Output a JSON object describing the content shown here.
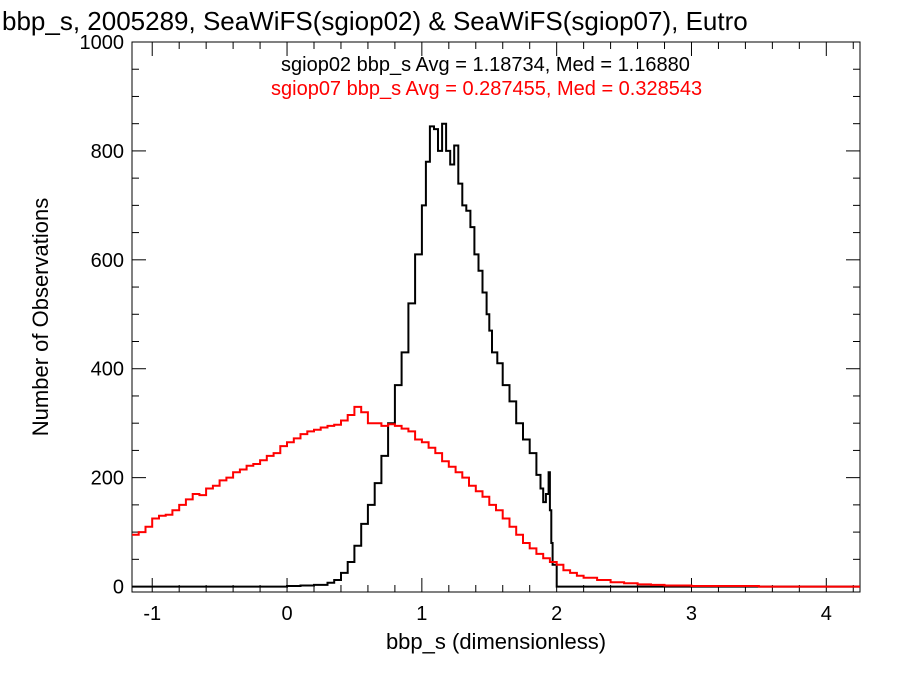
{
  "chart_data": {
    "type": "line",
    "title": "bbp_s, 2005289, SeaWiFS(sgiop02) & SeaWiFS(sgiop07), Eutro",
    "xlabel": "bbp_s (dimensionless)",
    "ylabel": "Number of Observations",
    "xlim": [
      -1.15,
      4.25
    ],
    "ylim": [
      -10,
      1000
    ],
    "x_ticks": [
      "-1",
      "0",
      "1",
      "2",
      "3",
      "4"
    ],
    "x_tick_values": [
      -1,
      0,
      1,
      2,
      3,
      4
    ],
    "y_ticks": [
      "0",
      "200",
      "400",
      "600",
      "800",
      "1000"
    ],
    "y_tick_values": [
      0,
      200,
      400,
      600,
      800,
      1000
    ],
    "step": true,
    "annotations": [
      {
        "text": "sgiop02 bbp_s Avg = 1.18734, Med = 1.16880",
        "color": "#000000"
      },
      {
        "text": "sgiop07 bbp_s Avg = 0.287455, Med = 0.328543",
        "color": "#ff0000"
      }
    ],
    "series": [
      {
        "color": "#000000",
        "points": [
          [
            -1.15,
            0
          ],
          [
            -0.2,
            0
          ],
          [
            0.0,
            1
          ],
          [
            0.1,
            2
          ],
          [
            0.2,
            3
          ],
          [
            0.3,
            7
          ],
          [
            0.35,
            12
          ],
          [
            0.4,
            25
          ],
          [
            0.45,
            45
          ],
          [
            0.5,
            75
          ],
          [
            0.55,
            115
          ],
          [
            0.6,
            150
          ],
          [
            0.65,
            190
          ],
          [
            0.7,
            240
          ],
          [
            0.75,
            300
          ],
          [
            0.8,
            370
          ],
          [
            0.85,
            430
          ],
          [
            0.9,
            520
          ],
          [
            0.95,
            610
          ],
          [
            1.0,
            700
          ],
          [
            1.03,
            780
          ],
          [
            1.06,
            845
          ],
          [
            1.09,
            840
          ],
          [
            1.12,
            800
          ],
          [
            1.15,
            850
          ],
          [
            1.18,
            800
          ],
          [
            1.21,
            775
          ],
          [
            1.24,
            810
          ],
          [
            1.27,
            740
          ],
          [
            1.3,
            700
          ],
          [
            1.33,
            690
          ],
          [
            1.36,
            660
          ],
          [
            1.39,
            610
          ],
          [
            1.42,
            580
          ],
          [
            1.45,
            540
          ],
          [
            1.48,
            500
          ],
          [
            1.5,
            470
          ],
          [
            1.52,
            430
          ],
          [
            1.56,
            410
          ],
          [
            1.6,
            370
          ],
          [
            1.65,
            340
          ],
          [
            1.7,
            300
          ],
          [
            1.75,
            270
          ],
          [
            1.8,
            245
          ],
          [
            1.85,
            205
          ],
          [
            1.88,
            180
          ],
          [
            1.9,
            155
          ],
          [
            1.92,
            170
          ],
          [
            1.94,
            210
          ],
          [
            1.95,
            140
          ],
          [
            1.96,
            80
          ],
          [
            1.97,
            40
          ],
          [
            2.0,
            0
          ],
          [
            4.25,
            0
          ]
        ]
      },
      {
        "color": "#ff0000",
        "points": [
          [
            -1.15,
            95
          ],
          [
            -1.1,
            100
          ],
          [
            -1.05,
            110
          ],
          [
            -1.0,
            125
          ],
          [
            -0.95,
            130
          ],
          [
            -0.9,
            132
          ],
          [
            -0.85,
            140
          ],
          [
            -0.8,
            150
          ],
          [
            -0.75,
            160
          ],
          [
            -0.7,
            170
          ],
          [
            -0.65,
            168
          ],
          [
            -0.6,
            180
          ],
          [
            -0.55,
            185
          ],
          [
            -0.5,
            195
          ],
          [
            -0.45,
            200
          ],
          [
            -0.4,
            210
          ],
          [
            -0.35,
            215
          ],
          [
            -0.3,
            222
          ],
          [
            -0.25,
            225
          ],
          [
            -0.2,
            232
          ],
          [
            -0.15,
            240
          ],
          [
            -0.1,
            245
          ],
          [
            -0.05,
            258
          ],
          [
            0.0,
            265
          ],
          [
            0.05,
            272
          ],
          [
            0.1,
            280
          ],
          [
            0.15,
            285
          ],
          [
            0.2,
            288
          ],
          [
            0.25,
            292
          ],
          [
            0.3,
            295
          ],
          [
            0.35,
            297
          ],
          [
            0.4,
            305
          ],
          [
            0.45,
            315
          ],
          [
            0.5,
            330
          ],
          [
            0.55,
            320
          ],
          [
            0.6,
            300
          ],
          [
            0.65,
            300
          ],
          [
            0.7,
            295
          ],
          [
            0.75,
            298
          ],
          [
            0.8,
            295
          ],
          [
            0.85,
            290
          ],
          [
            0.9,
            285
          ],
          [
            0.95,
            270
          ],
          [
            1.0,
            265
          ],
          [
            1.05,
            255
          ],
          [
            1.1,
            245
          ],
          [
            1.15,
            230
          ],
          [
            1.2,
            220
          ],
          [
            1.25,
            210
          ],
          [
            1.3,
            200
          ],
          [
            1.35,
            185
          ],
          [
            1.4,
            175
          ],
          [
            1.45,
            165
          ],
          [
            1.5,
            150
          ],
          [
            1.55,
            140
          ],
          [
            1.6,
            125
          ],
          [
            1.65,
            110
          ],
          [
            1.7,
            95
          ],
          [
            1.75,
            80
          ],
          [
            1.8,
            70
          ],
          [
            1.85,
            60
          ],
          [
            1.9,
            52
          ],
          [
            1.95,
            45
          ],
          [
            2.0,
            40
          ],
          [
            2.05,
            30
          ],
          [
            2.1,
            25
          ],
          [
            2.15,
            20
          ],
          [
            2.2,
            16
          ],
          [
            2.3,
            12
          ],
          [
            2.4,
            8
          ],
          [
            2.5,
            6
          ],
          [
            2.6,
            4
          ],
          [
            2.7,
            3
          ],
          [
            2.8,
            2
          ],
          [
            3.0,
            1
          ],
          [
            3.5,
            0
          ],
          [
            4.25,
            0
          ]
        ]
      }
    ]
  }
}
